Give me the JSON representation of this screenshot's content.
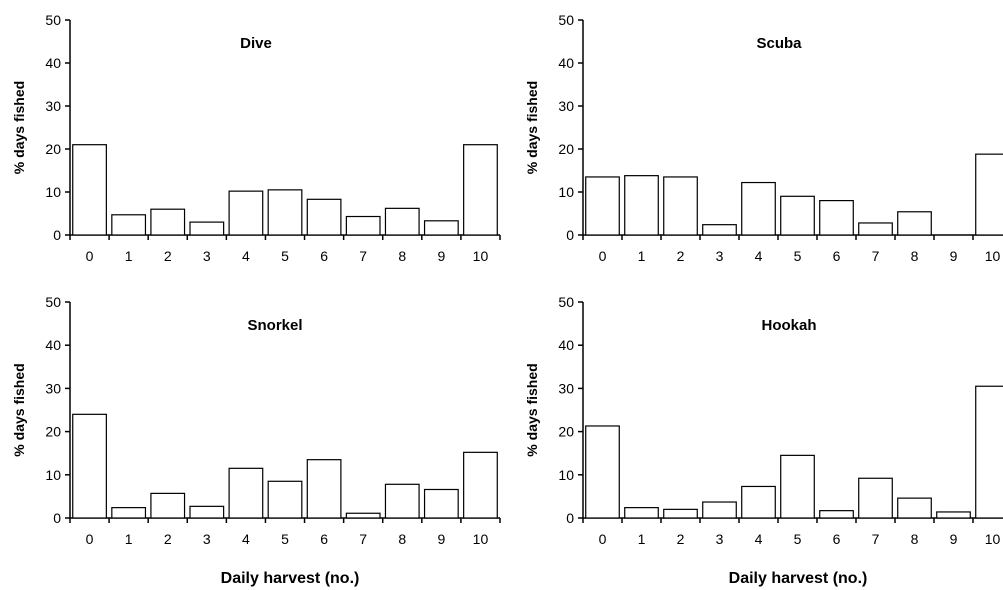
{
  "chart_data": [
    {
      "type": "bar",
      "title": "Dive",
      "xlabel": "",
      "ylabel": "% days fished",
      "ylim": [
        0,
        50
      ],
      "yticks": [
        0,
        10,
        20,
        30,
        40,
        50
      ],
      "categories": [
        "0",
        "1",
        "2",
        "3",
        "4",
        "5",
        "6",
        "7",
        "8",
        "9",
        "10"
      ],
      "values": [
        21,
        4.7,
        6,
        3,
        10.2,
        10.5,
        8.3,
        4.3,
        6.2,
        3.3,
        21
      ],
      "grid": false
    },
    {
      "type": "bar",
      "title": "Scuba",
      "xlabel": "",
      "ylabel": "% days fished",
      "ylim": [
        0,
        50
      ],
      "yticks": [
        0,
        10,
        20,
        30,
        40,
        50
      ],
      "categories": [
        "0",
        "1",
        "2",
        "3",
        "4",
        "5",
        "6",
        "7",
        "8",
        "9",
        "10"
      ],
      "values": [
        13.5,
        13.8,
        13.5,
        2.4,
        12.2,
        9,
        8,
        2.8,
        5.4,
        0,
        18.8
      ],
      "grid": false
    },
    {
      "type": "bar",
      "title": "Snorkel",
      "xlabel": "Daily harvest (no.)",
      "ylabel": "% days fished",
      "ylim": [
        0,
        50
      ],
      "yticks": [
        0,
        10,
        20,
        30,
        40,
        50
      ],
      "categories": [
        "0",
        "1",
        "2",
        "3",
        "4",
        "5",
        "6",
        "7",
        "8",
        "9",
        "10"
      ],
      "values": [
        24,
        2.4,
        5.7,
        2.7,
        11.5,
        8.5,
        13.5,
        1.1,
        7.8,
        6.6,
        15.2
      ],
      "grid": false
    },
    {
      "type": "bar",
      "title": "Hookah",
      "xlabel": "Daily harvest (no.)",
      "ylabel": "% days fished",
      "ylim": [
        0,
        50
      ],
      "yticks": [
        0,
        10,
        20,
        30,
        40,
        50
      ],
      "categories": [
        "0",
        "1",
        "2",
        "3",
        "4",
        "5",
        "6",
        "7",
        "8",
        "9",
        "10"
      ],
      "values": [
        21.3,
        2.4,
        2,
        3.7,
        7.3,
        14.5,
        1.7,
        9.2,
        4.6,
        1.4,
        30.5
      ],
      "grid": false
    }
  ]
}
